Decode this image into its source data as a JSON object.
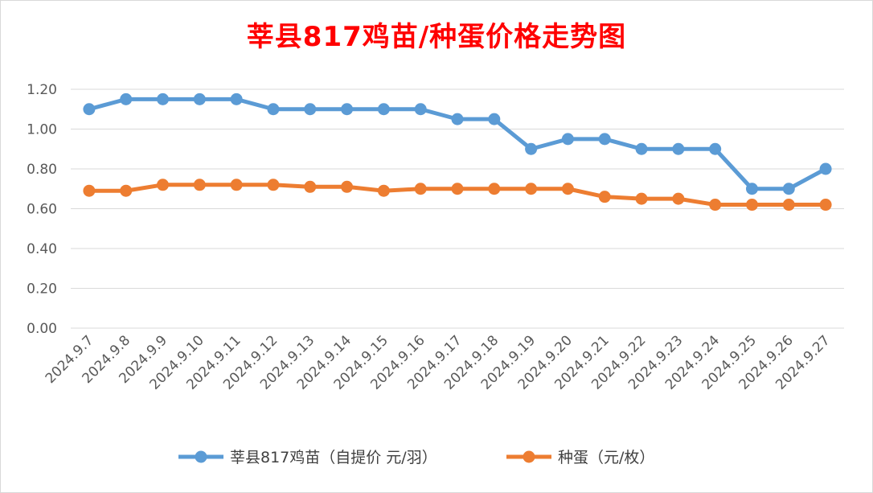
{
  "chart_data": {
    "type": "line",
    "title": "莘县817鸡苗/种蛋价格走势图",
    "categories": [
      "2024.9.7",
      "2024.9.8",
      "2024.9.9",
      "2024.9.10",
      "2024.9.11",
      "2024.9.12",
      "2024.9.13",
      "2024.9.14",
      "2024.9.15",
      "2024.9.16",
      "2024.9.17",
      "2024.9.18",
      "2024.9.19",
      "2024.9.20",
      "2024.9.21",
      "2024.9.22",
      "2024.9.23",
      "2024.9.24",
      "2024.9.25",
      "2024.9.26",
      "2024.9.27"
    ],
    "yticks": [
      "0.00",
      "0.20",
      "0.40",
      "0.60",
      "0.80",
      "1.00",
      "1.20"
    ],
    "ylim": [
      0,
      1.2
    ],
    "grid": true,
    "legend_position": "bottom",
    "series": [
      {
        "name": "莘县817鸡苗（自提价 元/羽）",
        "color": "#5b9bd5",
        "values": [
          1.1,
          1.15,
          1.15,
          1.15,
          1.15,
          1.1,
          1.1,
          1.1,
          1.1,
          1.1,
          1.05,
          1.05,
          0.9,
          0.95,
          0.95,
          0.9,
          0.9,
          0.9,
          0.7,
          0.7,
          0.8
        ]
      },
      {
        "name": "种蛋（元/枚）",
        "color": "#ed7d31",
        "values": [
          0.69,
          0.69,
          0.72,
          0.72,
          0.72,
          0.72,
          0.71,
          0.71,
          0.69,
          0.7,
          0.7,
          0.7,
          0.7,
          0.7,
          0.66,
          0.65,
          0.65,
          0.62,
          0.62,
          0.62,
          0.62
        ]
      }
    ]
  }
}
